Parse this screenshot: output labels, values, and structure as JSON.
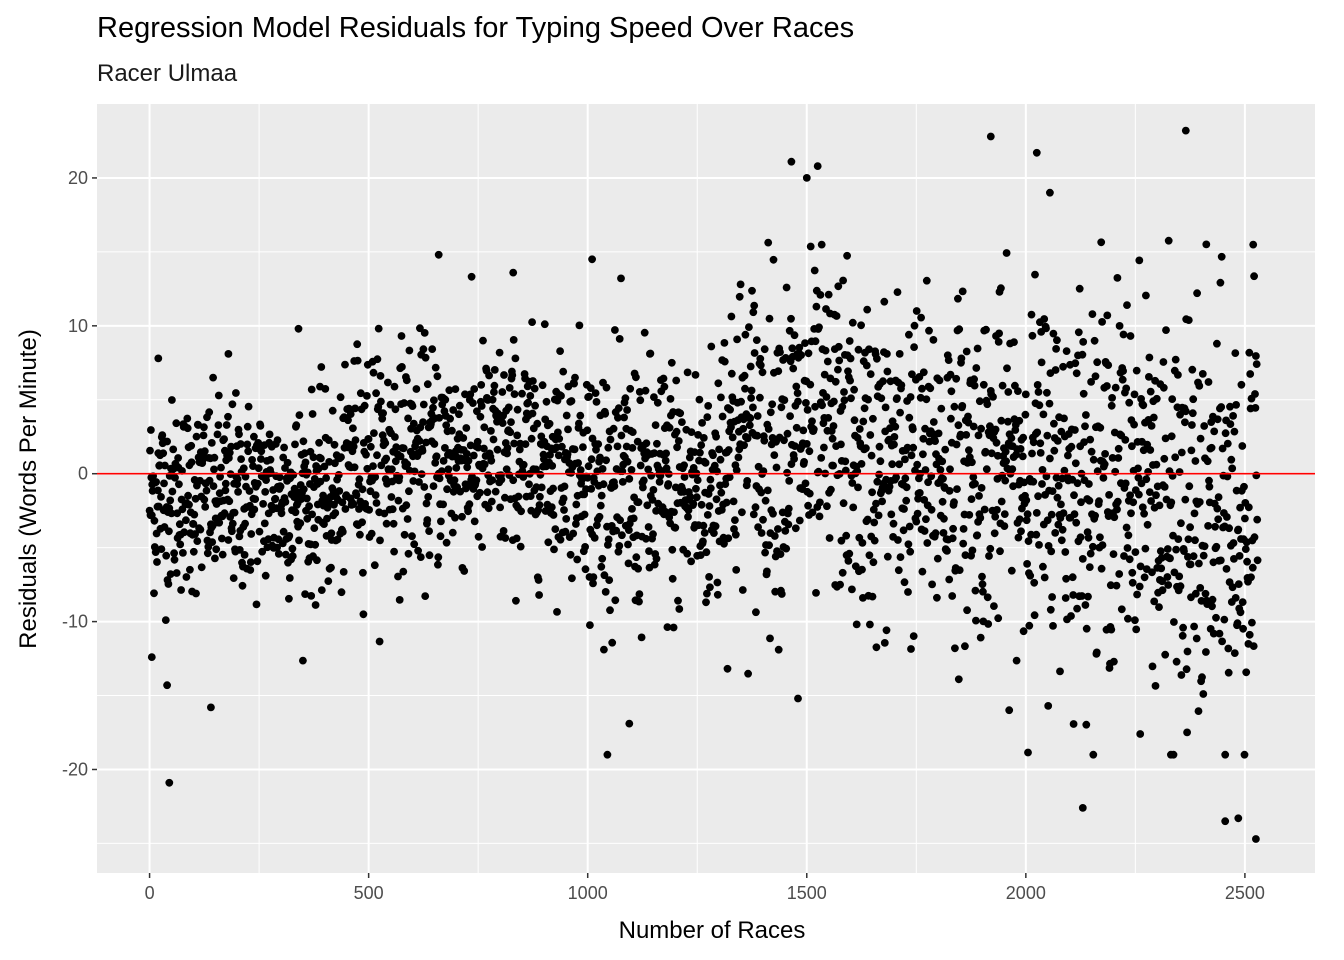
{
  "chart_data": {
    "type": "scatter",
    "title": "Regression Model Residuals for Typing Speed Over Races",
    "subtitle": "Racer Ulmaa",
    "xlabel": "Number of Races",
    "ylabel": "Residuals (Words Per Minute)",
    "xlim": [
      -120,
      2660
    ],
    "ylim": [
      -27,
      25
    ],
    "x_ticks": [
      0,
      500,
      1000,
      1500,
      2000,
      2500
    ],
    "y_ticks": [
      -20,
      -10,
      0,
      10,
      20
    ],
    "grid": true,
    "reference_line": {
      "y": 0,
      "color": "#ff0000"
    },
    "point_color": "#000000",
    "panel_background": "#ebebeb",
    "grid_color": "#ffffff",
    "n_points": 2530,
    "notable_points": [
      {
        "x": 5,
        "y": -12.4
      },
      {
        "x": 20,
        "y": 7.8
      },
      {
        "x": 40,
        "y": -14.3
      },
      {
        "x": 45,
        "y": -20.9
      },
      {
        "x": 140,
        "y": -15.8
      },
      {
        "x": 180,
        "y": 8.1
      },
      {
        "x": 340,
        "y": 9.8
      },
      {
        "x": 660,
        "y": 14.8
      },
      {
        "x": 830,
        "y": 13.6
      },
      {
        "x": 1010,
        "y": 14.5
      },
      {
        "x": 1095,
        "y": -16.9
      },
      {
        "x": 1465,
        "y": 21.1
      },
      {
        "x": 1480,
        "y": -15.2
      },
      {
        "x": 1500,
        "y": 20.0
      },
      {
        "x": 1525,
        "y": 20.8
      },
      {
        "x": 1920,
        "y": 22.8
      },
      {
        "x": 2025,
        "y": 21.7
      },
      {
        "x": 2055,
        "y": 19.0
      },
      {
        "x": 2130,
        "y": -22.6
      },
      {
        "x": 2365,
        "y": 23.2
      },
      {
        "x": 2455,
        "y": -23.5
      },
      {
        "x": 2485,
        "y": -23.3
      },
      {
        "x": 2525,
        "y": -24.7
      }
    ],
    "segments": [
      {
        "x_range": [
          0,
          450
        ],
        "mean": -1.5,
        "sd": 3.2
      },
      {
        "x_range": [
          450,
          1000
        ],
        "mean": 1.2,
        "sd": 3.7
      },
      {
        "x_range": [
          1000,
          1300
        ],
        "mean": -1.0,
        "sd": 4.5
      },
      {
        "x_range": [
          1300,
          1600
        ],
        "mean": 2.5,
        "sd": 5.5
      },
      {
        "x_range": [
          1600,
          2000
        ],
        "mean": 0.5,
        "sd": 5.5
      },
      {
        "x_range": [
          2000,
          2300
        ],
        "mean": 0.0,
        "sd": 6.0
      },
      {
        "x_range": [
          2300,
          2530
        ],
        "mean": -3.5,
        "sd": 7.0
      }
    ]
  }
}
